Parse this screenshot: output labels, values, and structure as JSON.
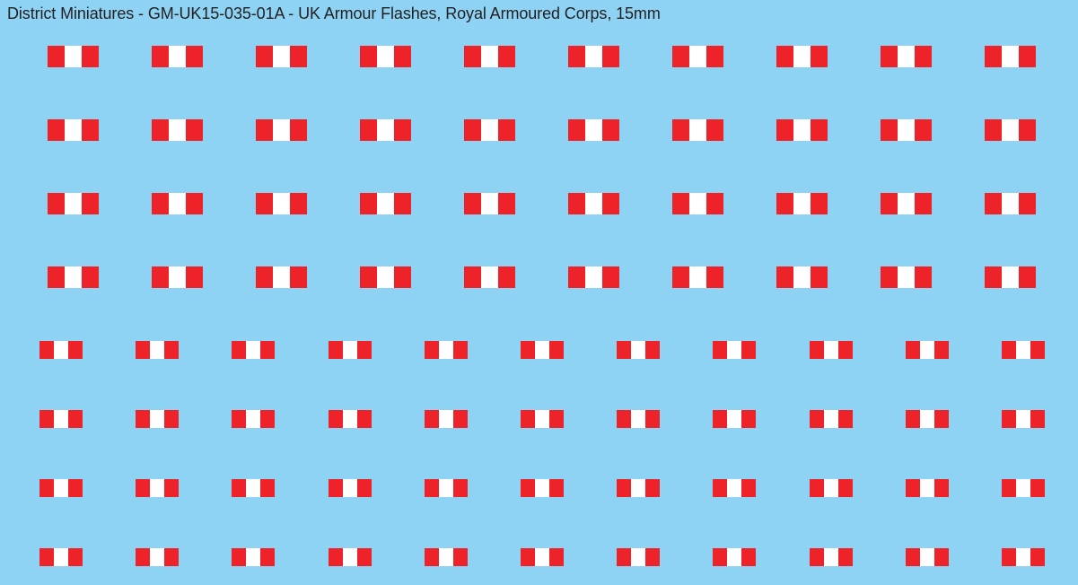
{
  "title": "District Miniatures - GM-UK15-035-01A - UK Armour Flashes, Royal Armoured Corps, 15mm",
  "colors": {
    "background": "#8fd3f4",
    "flash_red": "#ee2229",
    "flash_white": "#ffffff",
    "text": "#231f20"
  },
  "flash_design": {
    "stripes": [
      "red",
      "white",
      "red"
    ]
  },
  "groups": [
    {
      "name": "large-flashes",
      "rows": 4,
      "columns": 10
    },
    {
      "name": "small-flashes",
      "rows": 4,
      "columns": 11
    }
  ]
}
